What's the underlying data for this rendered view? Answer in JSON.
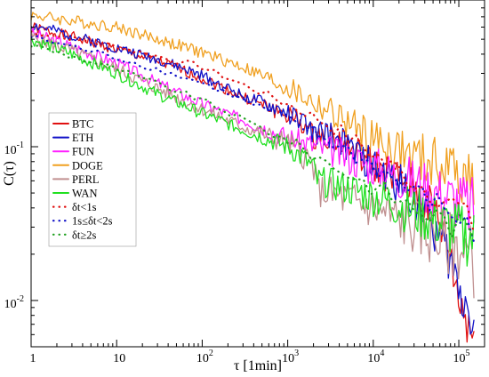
{
  "chart_data": {
    "type": "line",
    "title": "",
    "xlabel": "τ [1min]",
    "ylabel": "C(τ)",
    "xscale": "log",
    "yscale": "log",
    "xlim": [
      1,
      200000
    ],
    "ylim": [
      0.005,
      0.9
    ],
    "grid": false,
    "legend_position": "left",
    "x_tick_labels": [
      {
        "value": 1,
        "base": "1",
        "exp": ""
      },
      {
        "value": 10,
        "base": "10",
        "exp": ""
      },
      {
        "value": 100,
        "base": "10",
        "exp": "2"
      },
      {
        "value": 1000,
        "base": "10",
        "exp": "3"
      },
      {
        "value": 10000,
        "base": "10",
        "exp": "4"
      },
      {
        "value": 100000,
        "base": "10",
        "exp": "5"
      }
    ],
    "y_tick_labels": [
      {
        "value": 0.1,
        "base": "10",
        "exp": "-1"
      },
      {
        "value": 0.01,
        "base": "10",
        "exp": "-2"
      }
    ],
    "series": [
      {
        "name": "DOGE",
        "color": "#f0a020",
        "style": "solid",
        "noise": 0.04,
        "seed": 4,
        "x": [
          1,
          10,
          50,
          100,
          300,
          1000,
          3000,
          10000,
          30000,
          60000,
          100000,
          150000
        ],
        "y": [
          0.72,
          0.6,
          0.46,
          0.41,
          0.33,
          0.24,
          0.17,
          0.11,
          0.085,
          0.075,
          0.07,
          0.06
        ]
      },
      {
        "name": "BTC",
        "color": "#e01010",
        "style": "solid",
        "noise": 0.035,
        "seed": 1,
        "x": [
          1,
          3,
          10,
          30,
          100,
          300,
          1000,
          1500,
          2000,
          3000,
          5000,
          10000,
          20000,
          40000,
          60000,
          80000,
          100000,
          150000
        ],
        "y": [
          0.6,
          0.52,
          0.43,
          0.36,
          0.28,
          0.21,
          0.16,
          0.14,
          0.115,
          0.12,
          0.1,
          0.075,
          0.06,
          0.045,
          0.032,
          0.02,
          0.01,
          0.006
        ]
      },
      {
        "name": "ETH",
        "color": "#1010c8",
        "style": "solid",
        "noise": 0.035,
        "seed": 2,
        "x": [
          1,
          3,
          10,
          30,
          100,
          300,
          1000,
          1500,
          2000,
          3000,
          5000,
          10000,
          20000,
          40000,
          60000,
          80000,
          100000,
          150000
        ],
        "y": [
          0.62,
          0.53,
          0.44,
          0.37,
          0.29,
          0.215,
          0.165,
          0.145,
          0.12,
          0.122,
          0.1,
          0.074,
          0.058,
          0.04,
          0.025,
          0.018,
          0.012,
          0.008
        ]
      },
      {
        "name": "FUN",
        "color": "#ff20ff",
        "style": "solid",
        "noise": 0.04,
        "seed": 3,
        "x": [
          1,
          3,
          10,
          30,
          100,
          300,
          1000,
          3000,
          10000,
          30000,
          100000,
          150000
        ],
        "y": [
          0.55,
          0.45,
          0.35,
          0.26,
          0.19,
          0.15,
          0.115,
          0.095,
          0.075,
          0.06,
          0.045,
          0.04
        ]
      },
      {
        "name": "PERL",
        "color": "#c09090",
        "style": "solid",
        "noise": 0.045,
        "seed": 5,
        "x": [
          1,
          3,
          10,
          30,
          100,
          300,
          1000,
          1500,
          2000,
          2200,
          3000,
          10000,
          30000,
          100000,
          150000
        ],
        "y": [
          0.52,
          0.42,
          0.32,
          0.24,
          0.175,
          0.135,
          0.105,
          0.09,
          0.075,
          0.052,
          0.05,
          0.04,
          0.03,
          0.022,
          0.018
        ]
      },
      {
        "name": "WAN",
        "color": "#20e020",
        "style": "solid",
        "noise": 0.04,
        "seed": 6,
        "x": [
          1,
          3,
          10,
          30,
          100,
          300,
          1000,
          1500,
          2000,
          2200,
          3000,
          10000,
          30000,
          100000,
          150000
        ],
        "y": [
          0.5,
          0.4,
          0.3,
          0.22,
          0.165,
          0.128,
          0.1,
          0.085,
          0.072,
          0.06,
          0.058,
          0.048,
          0.038,
          0.028,
          0.025
        ]
      },
      {
        "name": "δt<1s",
        "color": "#e01010",
        "style": "dotted",
        "noise": 0.02,
        "seed": 7,
        "x": [
          1,
          10,
          100,
          1000,
          3000,
          10000,
          30000,
          100000,
          150000
        ],
        "y": [
          0.56,
          0.45,
          0.33,
          0.19,
          0.14,
          0.09,
          0.06,
          0.04,
          0.03
        ]
      },
      {
        "name": "1s≤δt<2s",
        "color": "#1010c8",
        "style": "dotted",
        "noise": 0.02,
        "seed": 8,
        "x": [
          1,
          10,
          100,
          1000,
          3000,
          10000,
          30000,
          100000,
          150000
        ],
        "y": [
          0.52,
          0.38,
          0.26,
          0.15,
          0.11,
          0.075,
          0.05,
          0.035,
          0.025
        ]
      },
      {
        "name": "δt≥2s",
        "color": "#20a020",
        "style": "dotted",
        "noise": 0.02,
        "seed": 9,
        "x": [
          1,
          10,
          100,
          1000,
          3000,
          10000,
          30000,
          100000,
          150000
        ],
        "y": [
          0.46,
          0.32,
          0.2,
          0.11,
          0.078,
          0.055,
          0.04,
          0.03,
          0.025
        ]
      }
    ],
    "legend_order": [
      "BTC",
      "ETH",
      "FUN",
      "DOGE",
      "PERL",
      "WAN",
      "δt<1s",
      "1s≤δt<2s",
      "δt≥2s"
    ]
  }
}
